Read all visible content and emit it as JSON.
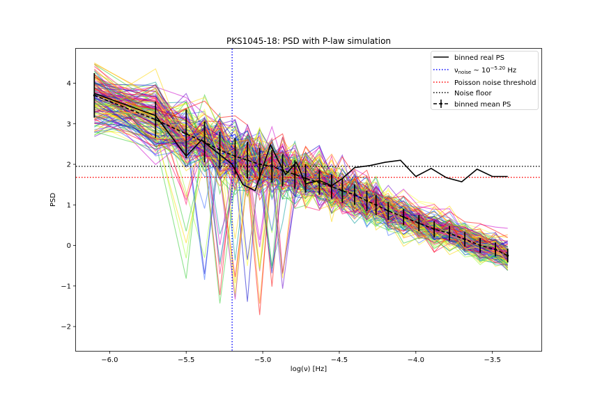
{
  "chart_data": {
    "type": "line",
    "title": "PKS1045-18: PSD with P-law simulation",
    "xlabel": "log(ν) [Hz]",
    "ylabel": "PSD",
    "xlim": [
      -6.22,
      -3.18
    ],
    "ylim": [
      -2.6,
      4.85
    ],
    "xticks": [
      -6.0,
      -5.5,
      -5.0,
      -4.5,
      -4.0,
      -3.5
    ],
    "xtick_labels": [
      "−6.0",
      "−5.5",
      "−5.0",
      "−4.5",
      "−4.0",
      "−3.5"
    ],
    "yticks": [
      -2,
      -1,
      0,
      1,
      2,
      3,
      4
    ],
    "ytick_labels": [
      "−2",
      "−1",
      "0",
      "1",
      "2",
      "3",
      "4"
    ],
    "grid": false,
    "legend_position": "top-right",
    "series": [
      {
        "name": "binned real PS",
        "style": "solid",
        "color": "#000000",
        "x": [
          -6.1,
          -5.7,
          -5.5,
          -5.4,
          -5.3,
          -5.2,
          -5.13,
          -5.05,
          -4.95,
          -4.9,
          -4.85,
          -4.78,
          -4.72,
          -4.63,
          -4.55,
          -4.48,
          -4.4,
          -4.3,
          -4.2,
          -4.1,
          -4.0,
          -3.9,
          -3.8,
          -3.7,
          -3.6,
          -3.5,
          -3.4
        ],
        "y": [
          3.75,
          3.2,
          2.2,
          2.6,
          2.3,
          2.0,
          1.5,
          1.35,
          2.48,
          2.1,
          1.75,
          2.05,
          1.52,
          1.6,
          1.47,
          1.65,
          1.92,
          1.97,
          2.05,
          2.1,
          1.7,
          1.9,
          1.67,
          1.57,
          1.88,
          1.7,
          1.7
        ]
      },
      {
        "name": "binned mean PS",
        "style": "dashed-errorbar",
        "color": "#000000",
        "x": [
          -6.1,
          -5.7,
          -5.5,
          -5.38,
          -5.28,
          -5.18,
          -5.1,
          -5.02,
          -4.94,
          -4.87,
          -4.79,
          -4.72,
          -4.63,
          -4.55,
          -4.48,
          -4.4,
          -4.32,
          -4.26,
          -4.18,
          -4.08,
          -3.98,
          -3.88,
          -3.78,
          -3.68,
          -3.58,
          -3.48,
          -3.4
        ],
        "y": [
          3.7,
          3.1,
          2.75,
          2.55,
          2.35,
          2.2,
          2.1,
          2.0,
          1.95,
          1.85,
          1.75,
          1.65,
          1.55,
          1.45,
          1.35,
          1.25,
          1.1,
          1.0,
          0.85,
          0.7,
          0.55,
          0.4,
          0.3,
          0.15,
          0.0,
          -0.1,
          -0.25
        ],
        "yerr": [
          0.55,
          0.45,
          0.6,
          0.5,
          0.45,
          0.45,
          0.45,
          0.4,
          0.4,
          0.4,
          0.35,
          0.35,
          0.3,
          0.3,
          0.3,
          0.25,
          0.25,
          0.25,
          0.22,
          0.2,
          0.2,
          0.2,
          0.18,
          0.18,
          0.18,
          0.17,
          0.17
        ]
      }
    ],
    "reference_lines": [
      {
        "name": "ν_noise ~ 10^−5.20 Hz",
        "orientation": "vertical",
        "value": -5.2,
        "color": "#0000ff",
        "style": "dotted"
      },
      {
        "name": "Poisson noise threshold",
        "orientation": "horizontal",
        "value": 1.68,
        "color": "#ff0000",
        "style": "dotted"
      },
      {
        "name": "Noise floor",
        "orientation": "horizontal",
        "value": 1.95,
        "color": "#000000",
        "style": "dotted"
      }
    ],
    "simulated_curves": {
      "count": 160,
      "colors": [
        "#ff0000",
        "#ff8800",
        "#ffd700",
        "#ffff33",
        "#99ff33",
        "#33cc33",
        "#009999",
        "#3366ff",
        "#0000cc",
        "#6600cc",
        "#cc00cc",
        "#ff0066"
      ]
    },
    "legend": {
      "real_ps": "binned real PS",
      "noise_pre": "ν",
      "noise_sub": "noise",
      "noise_mid": " ~ 10",
      "noise_sup": "−5.20",
      "noise_post": " Hz",
      "poisson": "Poisson noise threshold",
      "floor": "Noise floor",
      "mean_ps": "binned mean PS"
    }
  }
}
